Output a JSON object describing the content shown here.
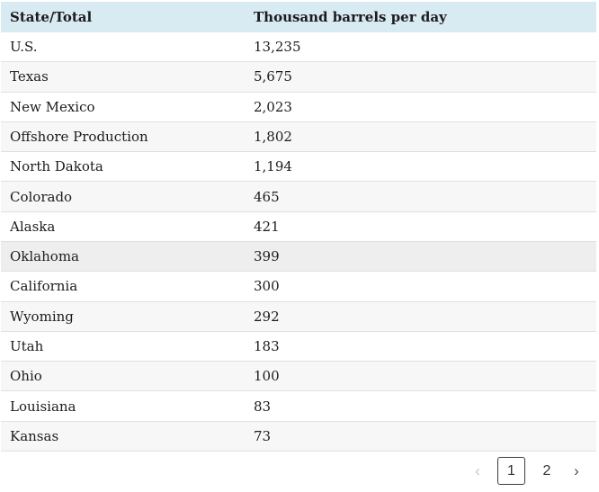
{
  "table": {
    "columns": [
      {
        "label": "State/Total"
      },
      {
        "label": "Thousand barrels per day"
      }
    ],
    "rows": [
      {
        "state": "U.S.",
        "value": "13,235"
      },
      {
        "state": "Texas",
        "value": "5,675"
      },
      {
        "state": "New Mexico",
        "value": "2,023"
      },
      {
        "state": "Offshore Production",
        "value": "1,802"
      },
      {
        "state": "North Dakota",
        "value": "1,194"
      },
      {
        "state": "Colorado",
        "value": "465"
      },
      {
        "state": "Alaska",
        "value": "421"
      },
      {
        "state": "Oklahoma",
        "value": "399",
        "highlighted": true
      },
      {
        "state": "California",
        "value": "300"
      },
      {
        "state": "Wyoming",
        "value": "292"
      },
      {
        "state": "Utah",
        "value": "183"
      },
      {
        "state": "Ohio",
        "value": "100"
      },
      {
        "state": "Louisiana",
        "value": "83"
      },
      {
        "state": "Kansas",
        "value": "73"
      }
    ]
  },
  "chart_data": {
    "type": "table",
    "title": "",
    "columns": [
      "State/Total",
      "Thousand barrels per day"
    ],
    "categories": [
      "U.S.",
      "Texas",
      "New Mexico",
      "Offshore Production",
      "North Dakota",
      "Colorado",
      "Alaska",
      "Oklahoma",
      "California",
      "Wyoming",
      "Utah",
      "Ohio",
      "Louisiana",
      "Kansas"
    ],
    "values": [
      13235,
      5675,
      2023,
      1802,
      1194,
      465,
      421,
      399,
      300,
      292,
      183,
      100,
      83,
      73
    ]
  },
  "pagination": {
    "prev_label": "‹",
    "next_label": "›",
    "current_page": "1",
    "pages": [
      {
        "label": "1",
        "active": true
      },
      {
        "label": "2",
        "active": false
      }
    ]
  },
  "colors": {
    "header_bg": "#d8eaf2",
    "stripe_bg": "#f7f7f7",
    "highlight_bg": "#eeeeee",
    "row_border": "#e0e0e0",
    "text": "#1c1c1c",
    "disabled": "#c4c4c4",
    "active_border": "#3c3c3c"
  }
}
